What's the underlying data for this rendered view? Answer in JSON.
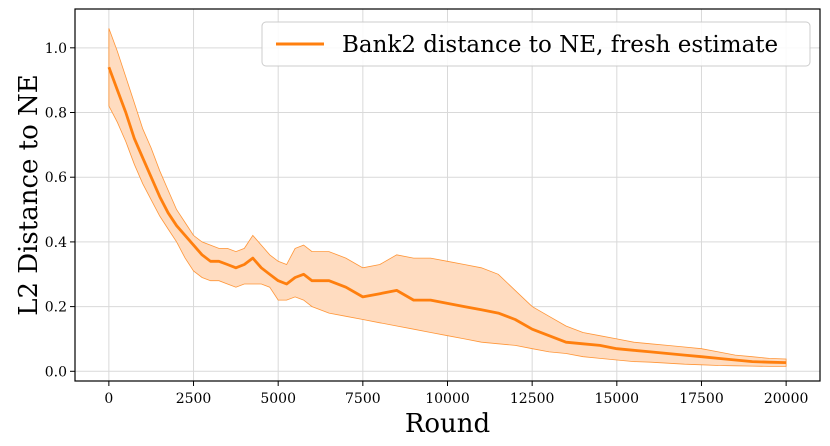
{
  "chart_data": {
    "type": "line",
    "title": "",
    "xlabel": "Round",
    "ylabel": "L2 Distance to NE",
    "xlim": [
      -1000,
      21000
    ],
    "ylim": [
      -0.03,
      1.12
    ],
    "x_ticks": [
      0,
      2500,
      5000,
      7500,
      10000,
      12500,
      15000,
      17500,
      20000
    ],
    "y_ticks": [
      0.0,
      0.2,
      0.4,
      0.6,
      0.8,
      1.0
    ],
    "x_tick_labels": [
      "0",
      "2500",
      "5000",
      "7500",
      "10000",
      "12500",
      "15000",
      "17500",
      "20000"
    ],
    "y_tick_labels": [
      "0.0",
      "0.2",
      "0.4",
      "0.6",
      "0.8",
      "1.0"
    ],
    "grid": true,
    "legend_position": "top-right",
    "series": [
      {
        "name": "Bank2 distance to NE, fresh estimate",
        "color": "#ff7f0e",
        "band_color": "#ffdcc0",
        "x": [
          0,
          250,
          500,
          750,
          1000,
          1250,
          1500,
          1750,
          2000,
          2250,
          2500,
          2750,
          3000,
          3250,
          3500,
          3750,
          4000,
          4250,
          4500,
          4750,
          5000,
          5250,
          5500,
          5750,
          6000,
          6500,
          7000,
          7500,
          8000,
          8500,
          9000,
          9500,
          10000,
          10500,
          11000,
          11500,
          12000,
          12500,
          13000,
          13500,
          14000,
          14500,
          15000,
          15500,
          16000,
          16500,
          17000,
          17500,
          18000,
          18500,
          19000,
          19500,
          20000
        ],
        "y": [
          0.94,
          0.87,
          0.8,
          0.72,
          0.66,
          0.6,
          0.54,
          0.49,
          0.45,
          0.42,
          0.39,
          0.36,
          0.34,
          0.34,
          0.33,
          0.32,
          0.33,
          0.35,
          0.32,
          0.3,
          0.28,
          0.27,
          0.29,
          0.3,
          0.28,
          0.28,
          0.26,
          0.23,
          0.24,
          0.25,
          0.22,
          0.22,
          0.21,
          0.2,
          0.19,
          0.18,
          0.16,
          0.13,
          0.11,
          0.09,
          0.085,
          0.08,
          0.07,
          0.065,
          0.06,
          0.055,
          0.05,
          0.045,
          0.04,
          0.035,
          0.03,
          0.028,
          0.027
        ],
        "lower": [
          0.82,
          0.77,
          0.71,
          0.64,
          0.58,
          0.53,
          0.48,
          0.44,
          0.4,
          0.35,
          0.31,
          0.29,
          0.28,
          0.28,
          0.27,
          0.26,
          0.27,
          0.27,
          0.27,
          0.26,
          0.22,
          0.22,
          0.23,
          0.22,
          0.2,
          0.18,
          0.17,
          0.16,
          0.15,
          0.14,
          0.13,
          0.12,
          0.11,
          0.1,
          0.09,
          0.085,
          0.08,
          0.07,
          0.06,
          0.055,
          0.045,
          0.04,
          0.035,
          0.03,
          0.028,
          0.025,
          0.022,
          0.02,
          0.018,
          0.017,
          0.016,
          0.015,
          0.015
        ],
        "upper": [
          1.06,
          0.99,
          0.91,
          0.83,
          0.75,
          0.69,
          0.62,
          0.56,
          0.5,
          0.46,
          0.42,
          0.4,
          0.39,
          0.38,
          0.38,
          0.37,
          0.38,
          0.42,
          0.39,
          0.36,
          0.34,
          0.33,
          0.38,
          0.39,
          0.37,
          0.37,
          0.35,
          0.32,
          0.33,
          0.36,
          0.35,
          0.35,
          0.34,
          0.33,
          0.32,
          0.3,
          0.25,
          0.2,
          0.17,
          0.14,
          0.12,
          0.11,
          0.1,
          0.09,
          0.085,
          0.08,
          0.075,
          0.07,
          0.06,
          0.05,
          0.045,
          0.04,
          0.038
        ]
      }
    ]
  }
}
